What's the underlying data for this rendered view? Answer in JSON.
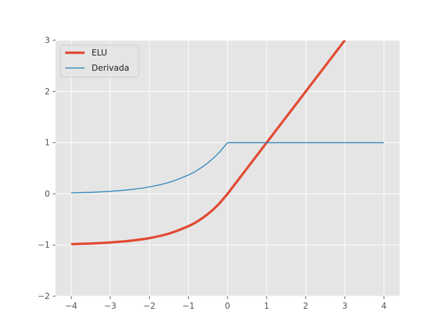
{
  "chart_data": {
    "type": "line",
    "title": "",
    "xlabel": "",
    "ylabel": "",
    "xlim": [
      -4.4,
      4.4
    ],
    "ylim": [
      -2,
      3
    ],
    "xticks": [
      -4,
      -3,
      -2,
      -1,
      0,
      1,
      2,
      3,
      4
    ],
    "yticks": [
      -2,
      -1,
      0,
      1,
      2,
      3
    ],
    "xtick_labels": [
      "−4",
      "−3",
      "−2",
      "−1",
      "0",
      "1",
      "2",
      "3",
      "4"
    ],
    "ytick_labels": [
      "−2",
      "−1",
      "0",
      "1",
      "2",
      "3"
    ],
    "grid": true,
    "legend_position": "top-left",
    "series": [
      {
        "name": "ELU",
        "color": "#E24A33",
        "x": [
          -4,
          -3.5,
          -3,
          -2.5,
          -2,
          -1.5,
          -1,
          -0.75,
          -0.5,
          -0.25,
          0,
          0.5,
          1,
          1.5,
          2,
          2.5,
          3
        ],
        "y": [
          -0.982,
          -0.97,
          -0.95,
          -0.918,
          -0.865,
          -0.777,
          -0.632,
          -0.528,
          -0.393,
          -0.221,
          0,
          0.5,
          1,
          1.5,
          2,
          2.5,
          3
        ]
      },
      {
        "name": "Derivada",
        "color": "#348ABD",
        "x": [
          -4,
          -3.5,
          -3,
          -2.5,
          -2,
          -1.5,
          -1,
          -0.75,
          -0.5,
          -0.25,
          0,
          1,
          2,
          3,
          4
        ],
        "y": [
          0.018,
          0.03,
          0.05,
          0.082,
          0.135,
          0.223,
          0.368,
          0.472,
          0.607,
          0.779,
          1,
          1,
          1,
          1,
          1
        ]
      }
    ]
  }
}
